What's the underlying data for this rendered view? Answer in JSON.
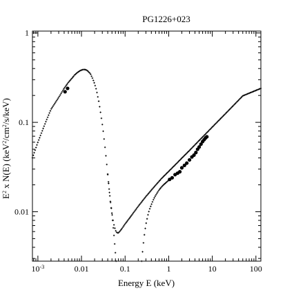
{
  "chart_data": {
    "type": "scatter",
    "title": "PG1226+023",
    "xlabel": "Energy E (keV)",
    "ylabel_parts": {
      "e": "E",
      "e_sup": "2",
      "mid": " x N(E) (keV",
      "keV_sup": "2",
      "cm": "/cm",
      "cm_sup": "2",
      "tail": "/s/keV)"
    },
    "x_scale": "log",
    "y_scale": "log",
    "xlim": [
      0.00075,
      130
    ],
    "ylim": [
      0.0028,
      1.05
    ],
    "x_ticks": [
      {
        "value": 0.001,
        "base": "10",
        "sup": "-3"
      },
      {
        "value": 0.01,
        "label": "0.01"
      },
      {
        "value": 0.1,
        "label": "0.1"
      },
      {
        "value": 1,
        "label": "1"
      },
      {
        "value": 10,
        "label": "10"
      },
      {
        "value": 100,
        "label": "100"
      }
    ],
    "y_ticks": [
      {
        "value": 0.01,
        "label": "0.01"
      },
      {
        "value": 0.1,
        "label": "0.1"
      },
      {
        "value": 1,
        "label": "1"
      }
    ],
    "series": [
      {
        "marker": "cross",
        "x": [
          0.00075,
          0.001,
          0.0015,
          0.002,
          0.003,
          0.004,
          0.005,
          0.006,
          0.007,
          0.008,
          0.009,
          0.01,
          0.011,
          0.012,
          0.013,
          0.014,
          0.016,
          0.018,
          0.02,
          0.022,
          0.025,
          0.028,
          0.03,
          0.032,
          0.035,
          0.038,
          0.04,
          0.043,
          0.046,
          0.05,
          0.053,
          0.056,
          0.059,
          0.062,
          0.066,
          0.07,
          0.075,
          0.085,
          0.1,
          0.12,
          0.15,
          0.2,
          0.3,
          0.5,
          0.7,
          1,
          1.5,
          2,
          3,
          5,
          7,
          10,
          20,
          50,
          130
        ],
        "y": [
          0.04,
          0.06,
          0.1,
          0.14,
          0.19,
          0.24,
          0.28,
          0.31,
          0.34,
          0.36,
          0.375,
          0.385,
          0.39,
          0.39,
          0.385,
          0.375,
          0.35,
          0.31,
          0.27,
          0.23,
          0.17,
          0.12,
          0.095,
          0.075,
          0.05,
          0.034,
          0.026,
          0.018,
          0.013,
          0.0095,
          0.008,
          0.007,
          0.0064,
          0.006,
          0.0058,
          0.0058,
          0.006,
          0.0065,
          0.0073,
          0.0082,
          0.0095,
          0.0115,
          0.0148,
          0.0198,
          0.0238,
          0.0283,
          0.0345,
          0.0398,
          0.0485,
          0.0627,
          0.0741,
          0.0886,
          0.125,
          0.198,
          0.24
        ]
      },
      {
        "marker": "cross",
        "x": [
          0.04,
          0.043,
          0.046,
          0.05,
          0.053,
          0.056,
          0.058,
          0.06,
          0.062
        ],
        "y": [
          0.026,
          0.018,
          0.013,
          0.0095,
          0.007,
          0.0052,
          0.0042,
          0.0034,
          0.0028
        ]
      },
      {
        "marker": "cross",
        "x": [
          0.24,
          0.26,
          0.28,
          0.3,
          0.33,
          0.36,
          0.4,
          0.45,
          0.5,
          0.6,
          0.7,
          0.85,
          1
        ],
        "y": [
          0.0028,
          0.0042,
          0.0058,
          0.0072,
          0.009,
          0.0105,
          0.012,
          0.0138,
          0.0152,
          0.0175,
          0.0192,
          0.021,
          0.0225
        ]
      },
      {
        "marker": "dot",
        "x": [
          0.0042,
          0.0048,
          1.05,
          1.2,
          1.4,
          1.6,
          1.8,
          2.0,
          2.3,
          2.6,
          3.0,
          3.4,
          3.8,
          4.2,
          4.6,
          5.0,
          5.5,
          6.0,
          6.5,
          7.0,
          7.5
        ],
        "y": [
          0.22,
          0.24,
          0.023,
          0.024,
          0.026,
          0.027,
          0.028,
          0.031,
          0.033,
          0.035,
          0.038,
          0.041,
          0.043,
          0.046,
          0.05,
          0.053,
          0.057,
          0.061,
          0.064,
          0.067,
          0.069
        ]
      }
    ]
  }
}
